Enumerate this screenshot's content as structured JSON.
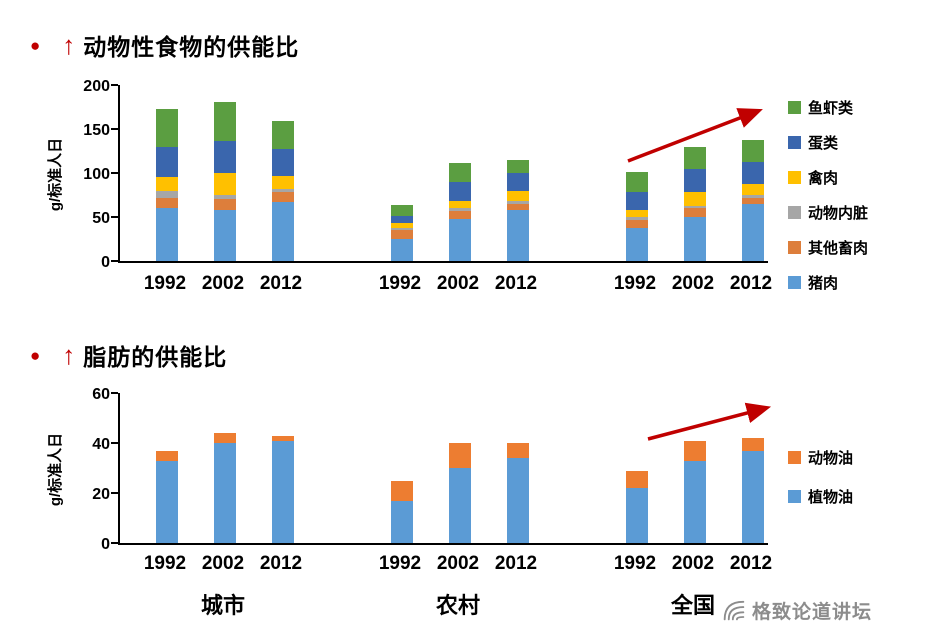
{
  "page": {
    "bullet_glyph": "●",
    "up_arrow_glyph": "↑",
    "group_labels": [
      "城市",
      "农村",
      "全国"
    ],
    "watermark": {
      "text": "格致论道讲坛"
    }
  },
  "chart_data": [
    {
      "type": "bar",
      "stacked": true,
      "title": "动物性食物的供能比",
      "ylabel": "g/标准人日",
      "ylim": [
        0,
        200
      ],
      "yticks": [
        0,
        50,
        100,
        150,
        200
      ],
      "groups": [
        "城市",
        "农村",
        "全国"
      ],
      "categories": [
        "1992",
        "2002",
        "2012"
      ],
      "grid": false,
      "legend_position": "right",
      "legend": [
        "鱼虾类",
        "蛋类",
        "禽肉",
        "动物内脏",
        "其他畜肉",
        "猪肉"
      ],
      "series": [
        {
          "name": "猪肉",
          "color": "#5B9BD5",
          "values": [
            [
              60,
              58,
              67
            ],
            [
              25,
              48,
              58
            ],
            [
              37,
              50,
              65
            ]
          ]
        },
        {
          "name": "其他畜肉",
          "color": "#DD7E3B",
          "values": [
            [
              12,
              12,
              11
            ],
            [
              10,
              9,
              7
            ],
            [
              10,
              10,
              7
            ]
          ]
        },
        {
          "name": "动物内脏",
          "color": "#A6A6A6",
          "values": [
            [
              8,
              5,
              4
            ],
            [
              3,
              3,
              3
            ],
            [
              3,
              3,
              3
            ]
          ]
        },
        {
          "name": "禽肉",
          "color": "#FFC000",
          "values": [
            [
              15,
              25,
              15
            ],
            [
              5,
              8,
              12
            ],
            [
              8,
              15,
              13
            ]
          ]
        },
        {
          "name": "蛋类",
          "color": "#3A66AD",
          "values": [
            [
              35,
              36,
              30
            ],
            [
              8,
              22,
              20
            ],
            [
              20,
              27,
              24
            ]
          ]
        },
        {
          "name": "鱼虾类",
          "color": "#5B9E41",
          "values": [
            [
              43,
              45,
              32
            ],
            [
              13,
              21,
              15
            ],
            [
              23,
              25,
              25
            ]
          ]
        }
      ],
      "totals": [
        [
          173,
          181,
          159
        ],
        [
          64,
          111,
          115
        ],
        [
          101,
          130,
          137
        ]
      ],
      "annotation": {
        "type": "trend-arrow-up",
        "color": "#C00000",
        "over_group": "全国"
      }
    },
    {
      "type": "bar",
      "stacked": true,
      "title": "脂肪的供能比",
      "ylabel": "g/标准人日",
      "ylim": [
        0,
        60
      ],
      "yticks": [
        0,
        20,
        40,
        60
      ],
      "groups": [
        "城市",
        "农村",
        "全国"
      ],
      "categories": [
        "1992",
        "2002",
        "2012"
      ],
      "grid": false,
      "legend_position": "right",
      "legend": [
        "动物油",
        "植物油"
      ],
      "series": [
        {
          "name": "植物油",
          "color": "#5B9BD5",
          "values": [
            [
              33,
              40,
              41
            ],
            [
              17,
              30,
              34
            ],
            [
              22,
              33,
              37
            ]
          ]
        },
        {
          "name": "动物油",
          "color": "#ED7D31",
          "values": [
            [
              4,
              4,
              2
            ],
            [
              8,
              10,
              6
            ],
            [
              7,
              8,
              5
            ]
          ]
        }
      ],
      "totals": [
        [
          37,
          44,
          43
        ],
        [
          25,
          40,
          40
        ],
        [
          29,
          41,
          42
        ]
      ],
      "annotation": {
        "type": "trend-arrow-up",
        "color": "#C00000",
        "over_group": "全国"
      }
    }
  ]
}
